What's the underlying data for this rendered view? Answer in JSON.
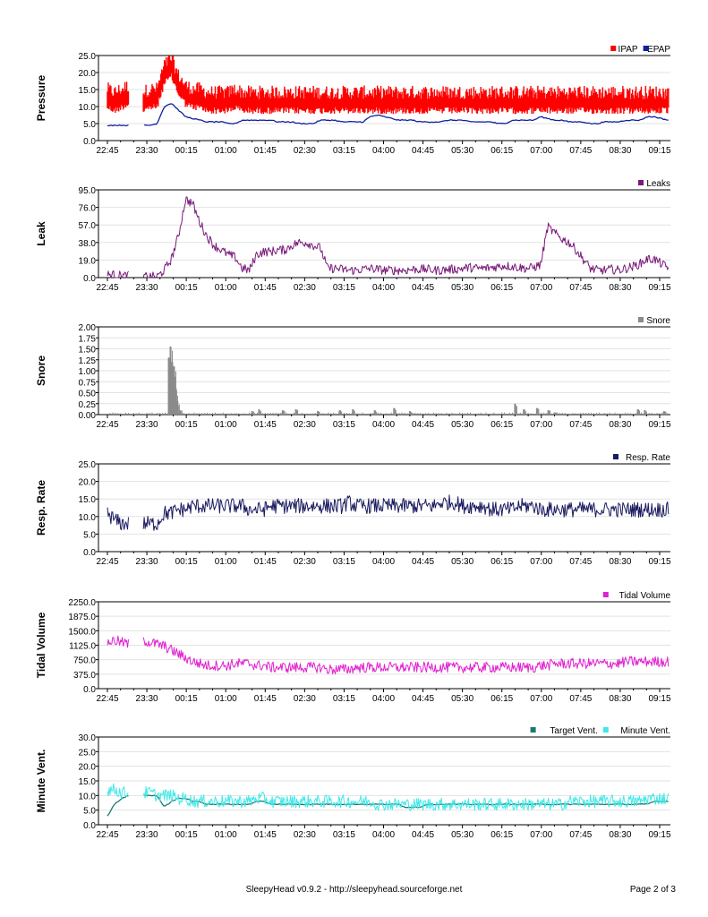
{
  "time_ticks": [
    "22:45",
    "23:30",
    "00:15",
    "01:00",
    "01:45",
    "02:30",
    "03:15",
    "04:00",
    "04:45",
    "05:30",
    "06:15",
    "07:00",
    "07:45",
    "08:30",
    "09:15"
  ],
  "footer": {
    "center": "SleepyHead v0.9.2 - http://sleepyhead.sourceforge.net",
    "right": "Page 2 of 3"
  },
  "chart_data": [
    {
      "type": "line",
      "ylabel": "Pressure",
      "ylim": [
        0,
        25
      ],
      "yticks": [
        "0.0",
        "5.0",
        "10.0",
        "15.0",
        "20.0",
        "25.0"
      ],
      "grid": true,
      "legend_position": "top-right",
      "series": [
        {
          "name": "IPAP",
          "color": "#ff0000",
          "style": "band",
          "x_start": "22:45",
          "x_end": "09:25",
          "gaps": [
            [
              "23:10",
              "23:25"
            ]
          ],
          "values": [
            12,
            11,
            12,
            13,
            12,
            11,
            12,
            12,
            19,
            21,
            16,
            13,
            12,
            12,
            11,
            11,
            11,
            11,
            12,
            11,
            11,
            11,
            11,
            11,
            11,
            11,
            11,
            11,
            11,
            11,
            11,
            11,
            11,
            11,
            11,
            11,
            11,
            11,
            11,
            11,
            11,
            11,
            11,
            11,
            11,
            11,
            11,
            11,
            11,
            11,
            11,
            11,
            11,
            11,
            11,
            11,
            11,
            11,
            11,
            11,
            11,
            11,
            11,
            11,
            11,
            11,
            11,
            11,
            11,
            11,
            11,
            11,
            11,
            11,
            11,
            11,
            11,
            11,
            11,
            11
          ],
          "spread": 4
        },
        {
          "name": "EPAP",
          "color": "#1020a0",
          "style": "line",
          "x_start": "22:45",
          "x_end": "09:25",
          "gaps": [
            [
              "23:10",
              "23:25"
            ]
          ],
          "values": [
            4.5,
            4.5,
            4.5,
            4.5,
            4.5,
            4.5,
            4.5,
            5,
            10,
            11,
            9,
            7,
            6.5,
            6,
            5.5,
            5.5,
            5.5,
            5,
            5,
            6,
            6,
            6,
            6,
            6,
            5.5,
            5.5,
            5.5,
            5,
            5,
            5,
            6,
            6,
            6,
            5.5,
            5.5,
            5.5,
            5.5,
            7,
            7.5,
            7,
            6.5,
            6,
            6,
            6,
            5.5,
            5.5,
            5.5,
            5.5,
            6,
            6,
            6,
            5.5,
            5.5,
            5.5,
            5.5,
            5,
            5,
            6,
            6,
            6,
            6,
            7,
            6.5,
            6,
            6,
            5.5,
            5.5,
            5.5,
            5,
            5,
            5.5,
            5.5,
            5.5,
            6,
            6,
            6,
            7,
            7,
            6.5,
            6
          ]
        }
      ]
    },
    {
      "type": "line",
      "ylabel": "Leak",
      "ylim": [
        0,
        95
      ],
      "yticks": [
        "0.0",
        "19.0",
        "38.0",
        "57.0",
        "76.0",
        "95.0"
      ],
      "grid": true,
      "legend_position": "top-right",
      "series": [
        {
          "name": "Leaks",
          "color": "#7a1a7a",
          "style": "noisy",
          "x_start": "22:45",
          "x_end": "09:25",
          "gaps": [
            [
              "23:10",
              "23:25"
            ]
          ],
          "values": [
            3,
            3,
            2,
            2,
            1,
            1,
            1,
            1,
            8,
            20,
            45,
            85,
            80,
            60,
            45,
            35,
            30,
            25,
            22,
            10,
            8,
            25,
            28,
            28,
            30,
            30,
            35,
            38,
            38,
            35,
            32,
            10,
            10,
            9,
            8,
            8,
            9,
            10,
            9,
            8,
            8,
            8,
            8,
            9,
            9,
            9,
            8,
            8,
            9,
            9,
            10,
            11,
            10,
            10,
            11,
            12,
            13,
            12,
            11,
            10,
            11,
            14,
            55,
            48,
            42,
            38,
            30,
            20,
            10,
            8,
            8,
            9,
            8,
            10,
            12,
            15,
            20,
            20,
            15,
            10
          ],
          "noise": 5
        }
      ]
    },
    {
      "type": "bar",
      "ylabel": "Snore",
      "ylim": [
        0,
        2
      ],
      "yticks": [
        "0.00",
        "0.25",
        "0.50",
        "0.75",
        "1.00",
        "1.25",
        "1.50",
        "1.75",
        "2.00"
      ],
      "grid": true,
      "legend_position": "top-right",
      "series": [
        {
          "name": "Snore",
          "color": "#8a8a8a",
          "style": "spikes",
          "x_start": "22:45",
          "x_end": "09:25",
          "spikes": [
            [
              "23:55",
              1.3
            ],
            [
              "23:57",
              1.55
            ],
            [
              "23:59",
              1.2
            ],
            [
              "00:01",
              1.1
            ],
            [
              "00:03",
              0.6
            ],
            [
              "00:05",
              0.3
            ],
            [
              "00:08",
              0.1
            ],
            [
              "01:30",
              0.08
            ],
            [
              "01:38",
              0.12
            ],
            [
              "02:05",
              0.1
            ],
            [
              "02:20",
              0.12
            ],
            [
              "02:45",
              0.08
            ],
            [
              "03:10",
              0.1
            ],
            [
              "03:25",
              0.12
            ],
            [
              "03:50",
              0.1
            ],
            [
              "04:12",
              0.15
            ],
            [
              "04:30",
              0.08
            ],
            [
              "06:30",
              0.25
            ],
            [
              "06:40",
              0.12
            ],
            [
              "06:55",
              0.15
            ],
            [
              "07:08",
              0.1
            ],
            [
              "07:15",
              0.05
            ],
            [
              "08:50",
              0.12
            ],
            [
              "08:58",
              0.1
            ],
            [
              "09:20",
              0.08
            ]
          ]
        }
      ]
    },
    {
      "type": "line",
      "ylabel": "Resp. Rate",
      "ylim": [
        0,
        25
      ],
      "yticks": [
        "0.0",
        "5.0",
        "10.0",
        "15.0",
        "20.0",
        "25.0"
      ],
      "grid": true,
      "legend_position": "top-right",
      "series": [
        {
          "name": "Resp. Rate",
          "color": "#1a1a60",
          "style": "noisy",
          "x_start": "22:45",
          "x_end": "09:25",
          "gaps": [
            [
              "23:10",
              "23:25"
            ]
          ],
          "values": [
            11,
            9,
            8,
            8,
            8,
            8,
            8,
            8,
            11,
            11,
            12,
            12,
            13,
            13,
            13,
            13,
            13,
            13,
            13,
            13,
            12,
            12,
            12,
            13,
            13,
            13,
            13,
            13,
            13,
            13,
            13,
            13,
            13,
            13,
            14,
            13,
            13,
            13,
            13,
            13,
            13,
            13,
            13,
            13,
            13,
            13,
            13,
            14,
            14,
            14,
            13,
            13,
            13,
            13,
            12,
            12,
            12,
            12,
            13,
            13,
            13,
            12,
            12,
            12,
            12,
            12,
            12,
            12,
            12,
            12,
            12,
            12,
            12,
            12,
            12,
            12,
            12,
            12,
            12,
            12
          ],
          "noise": 2.2
        }
      ]
    },
    {
      "type": "line",
      "ylabel": "Tidal Volume",
      "ylim": [
        0,
        2250
      ],
      "yticks": [
        "0.0",
        "375.0",
        "750.0",
        "1125.0",
        "1500.0",
        "1875.0",
        "2250.0"
      ],
      "grid": true,
      "legend_position": "top-right",
      "series": [
        {
          "name": "Tidal Volume",
          "color": "#e020d0",
          "style": "noisy",
          "x_start": "22:45",
          "x_end": "09:25",
          "gaps": [
            [
              "23:10",
              "23:25"
            ]
          ],
          "values": [
            1200,
            1250,
            1200,
            1150,
            1200,
            1250,
            1200,
            1150,
            1100,
            1000,
            900,
            800,
            700,
            650,
            600,
            600,
            600,
            600,
            650,
            650,
            650,
            600,
            600,
            550,
            550,
            550,
            550,
            550,
            550,
            550,
            550,
            500,
            500,
            500,
            500,
            550,
            550,
            550,
            550,
            550,
            550,
            550,
            550,
            550,
            550,
            550,
            550,
            550,
            550,
            550,
            550,
            550,
            550,
            550,
            550,
            550,
            550,
            550,
            550,
            550,
            550,
            600,
            600,
            650,
            650,
            650,
            650,
            650,
            650,
            650,
            650,
            650,
            650,
            700,
            700,
            700,
            700,
            700,
            700,
            700
          ],
          "noise": 140
        }
      ]
    },
    {
      "type": "line",
      "ylabel": "Minute Vent.",
      "ylim": [
        0,
        30
      ],
      "yticks": [
        "0.0",
        "5.0",
        "10.0",
        "15.0",
        "20.0",
        "25.0",
        "30.0"
      ],
      "grid": true,
      "legend_position": "top-right",
      "series": [
        {
          "name": "Target Vent.",
          "color": "#1a7a70",
          "style": "line",
          "x_start": "22:45",
          "x_end": "09:25",
          "gaps": [
            [
              "23:10",
              "23:25"
            ]
          ],
          "values": [
            3,
            7,
            9,
            10,
            10,
            10,
            10,
            10,
            6,
            8,
            9,
            9,
            8,
            8,
            7,
            7,
            7,
            7,
            7,
            7,
            7,
            8,
            8,
            7,
            7,
            7,
            7,
            7,
            7,
            7,
            7,
            7,
            7,
            7,
            7,
            7,
            7,
            7,
            7,
            7,
            7,
            7,
            6,
            6,
            6,
            7,
            7,
            7,
            7,
            7,
            7,
            7,
            7,
            7,
            7,
            7,
            7,
            7,
            7,
            7,
            7,
            7,
            7,
            7,
            7,
            7,
            7,
            7,
            7,
            7,
            7,
            7,
            7,
            7,
            7,
            7,
            7,
            8,
            8,
            8
          ]
        },
        {
          "name": "Minute Vent.",
          "color": "#40e8e8",
          "style": "noisy",
          "x_start": "22:45",
          "x_end": "09:25",
          "gaps": [
            [
              "23:10",
              "23:25"
            ]
          ],
          "values": [
            12,
            12,
            11,
            11,
            11,
            11,
            11,
            10,
            10,
            10,
            9,
            9,
            8,
            8,
            8,
            8,
            8,
            8,
            8,
            8,
            8,
            9,
            9,
            8,
            8,
            8,
            8,
            8,
            8,
            8,
            8,
            8,
            8,
            8,
            8,
            8,
            8,
            8,
            7,
            7,
            7,
            7,
            7,
            7,
            7,
            7,
            7,
            7,
            7,
            7,
            7,
            7,
            7,
            7,
            7,
            7,
            7,
            7,
            7,
            7,
            7,
            7,
            7,
            7,
            7,
            8,
            8,
            8,
            8,
            8,
            8,
            8,
            8,
            8,
            8,
            8,
            9,
            9,
            9,
            9
          ],
          "noise": 2.2
        }
      ]
    }
  ]
}
